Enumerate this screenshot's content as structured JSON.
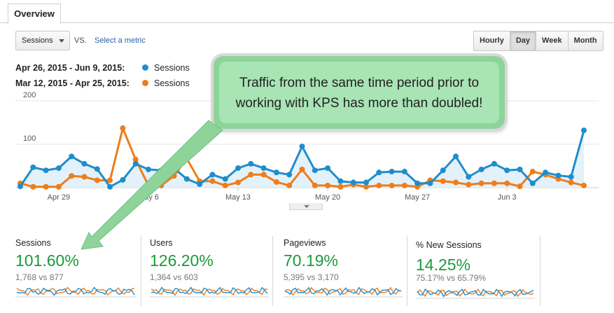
{
  "tab": {
    "label": "Overview"
  },
  "controls": {
    "metric_selected": "Sessions",
    "vs_label": "VS.",
    "select_metric_link": "Select a metric",
    "granularity": [
      "Hourly",
      "Day",
      "Week",
      "Month"
    ],
    "granularity_active": "Day"
  },
  "legend": [
    {
      "range": "Apr 26, 2015 - Jun 9, 2015:",
      "metric": "Sessions",
      "color": "#1f8dcc"
    },
    {
      "range": "Mar 12, 2015 - Apr 25, 2015:",
      "metric": "Sessions",
      "color": "#ee7d1a"
    }
  ],
  "callout": {
    "line1": "Traffic from the same time period prior to",
    "line2": "working with KPS has more than doubled!"
  },
  "chart_data": {
    "type": "line",
    "ylim": [
      0,
      200
    ],
    "yticks": [
      "200",
      "100"
    ],
    "xtick_labels": [
      "Apr 29",
      "May 6",
      "May 13",
      "May 20",
      "May 27",
      "Jun 3"
    ],
    "xtick_day_index": [
      3,
      10,
      17,
      24,
      31,
      38
    ],
    "series": [
      {
        "name": "Sessions (Apr 26, 2015 - Jun 9, 2015)",
        "color": "#1f8dcc",
        "values": [
          3,
          47,
          40,
          45,
          72,
          55,
          43,
          2,
          18,
          55,
          42,
          40,
          45,
          20,
          8,
          30,
          20,
          45,
          55,
          45,
          35,
          30,
          95,
          40,
          45,
          15,
          12,
          12,
          35,
          37,
          37,
          10,
          10,
          40,
          72,
          25,
          42,
          55,
          40,
          42,
          10,
          35,
          28,
          25,
          132
        ]
      },
      {
        "name": "Sessions (Mar 12, 2015 - Apr 25, 2015)",
        "color": "#ee7d1a",
        "values": [
          10,
          2,
          2,
          2,
          27,
          25,
          17,
          17,
          137,
          65,
          5,
          5,
          27,
          67,
          15,
          15,
          5,
          12,
          30,
          30,
          13,
          5,
          42,
          5,
          5,
          2,
          7,
          2,
          5,
          5,
          5,
          2,
          17,
          15,
          12,
          7,
          10,
          10,
          10,
          3,
          37,
          30,
          20,
          12,
          5
        ]
      }
    ]
  },
  "scorecards": [
    {
      "label": "Sessions",
      "value": "101.60%",
      "compare": "1,768 vs 877"
    },
    {
      "label": "Users",
      "value": "126.20%",
      "compare": "1,364 vs 603"
    },
    {
      "label": "Pageviews",
      "value": "70.19%",
      "compare": "5,395 vs 3,170"
    },
    {
      "label": "% New Sessions",
      "value": "14.25%",
      "compare": "75.17% vs 65.79%"
    }
  ]
}
